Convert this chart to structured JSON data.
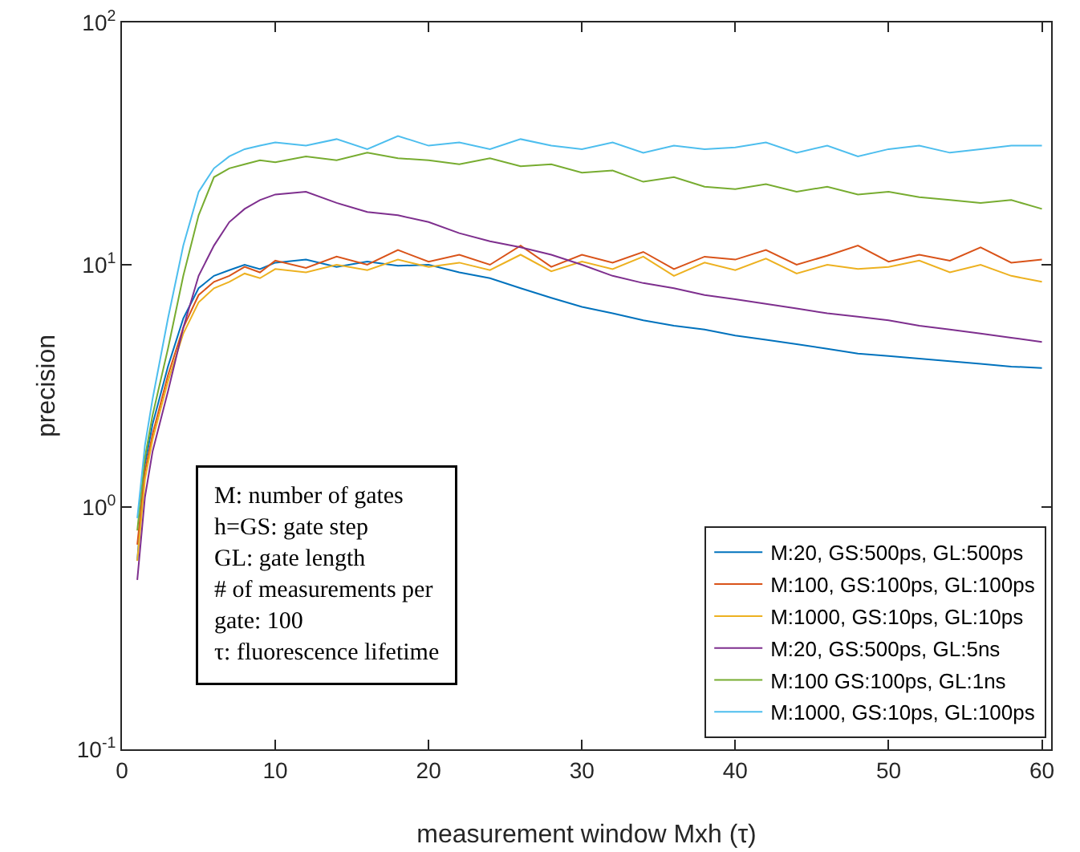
{
  "chart_data": {
    "type": "line",
    "xlabel": "measurement window Mxh (τ)",
    "ylabel": "precision",
    "log": true,
    "grid": false,
    "legend": "bottom right",
    "marker": "none",
    "line_style": "solid",
    "xlim": [
      0,
      60.6
    ],
    "xticks": [
      0,
      10,
      20,
      30,
      40,
      50,
      60
    ],
    "ylim": [
      0.1,
      100
    ],
    "yticks": [
      {
        "value": 0.1,
        "label": "10$^{-1}$"
      },
      {
        "value": 1,
        "label": "10$^{0}$"
      },
      {
        "value": 10,
        "label": "10$^{1}$"
      },
      {
        "value": 100,
        "label": "10$^{2}$"
      }
    ],
    "x": [
      1,
      1.5,
      2,
      3,
      4,
      5,
      6,
      7,
      8,
      9,
      10,
      12,
      14,
      16,
      18,
      20,
      22,
      24,
      26,
      28,
      30,
      32,
      34,
      36,
      38,
      40,
      42,
      44,
      46,
      48,
      50,
      52,
      54,
      56,
      58,
      60
    ],
    "series": [
      {
        "name": "M:20, GS:500ps, GL:500ps",
        "color": "#0072bd",
        "values": [
          0.6,
          1.5,
          2.2,
          3.8,
          6,
          8,
          9,
          9.5,
          10,
          9.6,
          10.2,
          10.5,
          9.8,
          10.3,
          9.9,
          10,
          9.3,
          8.8,
          8,
          7.3,
          6.7,
          6.3,
          5.9,
          5.6,
          5.4,
          5.1,
          4.9,
          4.7,
          4.5,
          4.3,
          4.2,
          4.1,
          4,
          3.9,
          3.8,
          3.75
        ]
      },
      {
        "name": "M:100, GS:100ps, GL:100ps",
        "color": "#d95319",
        "values": [
          0.7,
          1.4,
          2,
          3.5,
          5.5,
          7.5,
          8.5,
          9,
          9.8,
          9.3,
          10.4,
          9.7,
          10.8,
          10,
          11.5,
          10.3,
          11,
          10,
          12,
          9.8,
          11,
          10.2,
          11.3,
          9.6,
          10.8,
          10.5,
          11.5,
          10,
          10.9,
          12,
          10.3,
          11,
          10.4,
          11.8,
          10.2,
          10.5
        ]
      },
      {
        "name": "M:1000, GS:10ps, GL:10ps",
        "color": "#edb120",
        "values": [
          0.6,
          1.3,
          1.9,
          3.3,
          5.2,
          7,
          8,
          8.5,
          9.2,
          8.8,
          9.6,
          9.3,
          10,
          9.5,
          10.5,
          9.8,
          10.2,
          9.5,
          11,
          9.4,
          10.3,
          9.6,
          10.8,
          9,
          10.2,
          9.5,
          10.6,
          9.2,
          10,
          9.6,
          9.8,
          10.4,
          9.3,
          10,
          9,
          8.5
        ]
      },
      {
        "name": "M:20, GS:500ps, GL:5ns",
        "color": "#7e2f8e",
        "values": [
          0.5,
          1.1,
          1.7,
          3,
          5.5,
          9,
          12,
          15,
          17,
          18.5,
          19.5,
          20,
          18,
          16.5,
          16,
          15,
          13.5,
          12.5,
          11.8,
          11,
          10,
          9,
          8.4,
          8,
          7.5,
          7.2,
          6.9,
          6.6,
          6.3,
          6.1,
          5.9,
          5.6,
          5.4,
          5.2,
          5,
          4.8
        ]
      },
      {
        "name": "M:100 GS:100ps, GL:1ns",
        "color": "#77ac30",
        "values": [
          0.8,
          1.6,
          2.4,
          4.5,
          9,
          16,
          23,
          25,
          26,
          27,
          26.5,
          28,
          27,
          29,
          27.5,
          27,
          26,
          27.5,
          25.5,
          26,
          24,
          24.5,
          22,
          23,
          21,
          20.5,
          21.5,
          20,
          21,
          19.5,
          20,
          19,
          18.5,
          18,
          18.5,
          17
        ]
      },
      {
        "name": "M:1000, GS:10ps, GL:100ps",
        "color": "#4dbeee",
        "values": [
          0.9,
          1.8,
          2.8,
          6,
          12,
          20,
          25,
          28,
          30,
          31,
          32,
          31,
          33,
          30,
          34,
          31,
          32,
          30,
          33,
          31,
          30,
          32,
          29,
          31,
          30,
          30.5,
          32,
          29,
          31,
          28,
          30,
          31,
          29,
          30,
          31,
          31
        ]
      }
    ],
    "annotations": [
      "M: number of gates",
      "h=GS: gate step",
      "GL: gate length",
      "# of measurements per",
      "gate: 100",
      "τ: fluorescence lifetime"
    ]
  }
}
